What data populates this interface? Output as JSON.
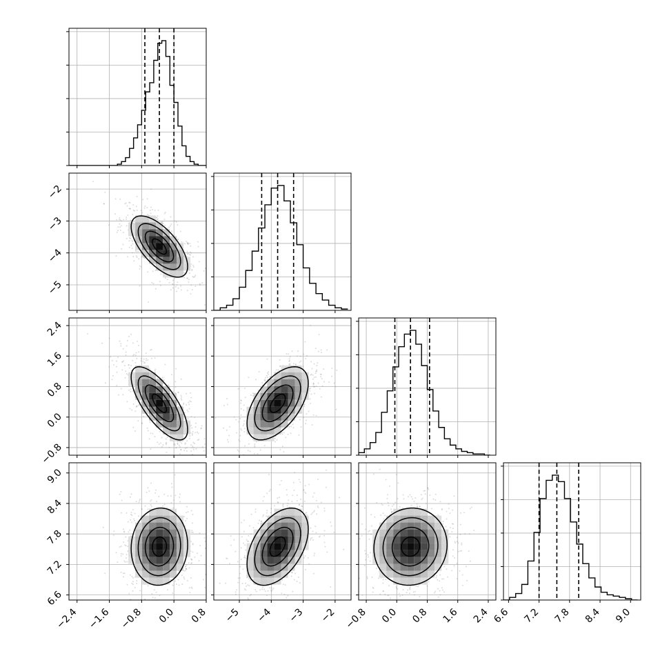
{
  "chart_data": {
    "type": "corner",
    "grid": true,
    "parameters": [
      {
        "label": "",
        "xlim": [
          -2.6,
          0.8
        ],
        "xticks": [
          -2.4,
          -1.6,
          -0.8,
          0.0,
          0.8
        ],
        "tick_labels": [
          "−2.4",
          "−1.6",
          "−0.8",
          "0.0",
          "0.8"
        ],
        "quantiles": [
          -0.72,
          -0.36,
          0.0
        ],
        "hist": {
          "edges": [
            -2.6,
            -2.5,
            -2.4,
            -2.3,
            -2.2,
            -2.1,
            -2.0,
            -1.9,
            -1.8,
            -1.7,
            -1.6,
            -1.5,
            -1.4,
            -1.3,
            -1.2,
            -1.1,
            -1.0,
            -0.9,
            -0.8,
            -0.7,
            -0.6,
            -0.5,
            -0.4,
            -0.3,
            -0.2,
            -0.1,
            0.0,
            0.1,
            0.2,
            0.3,
            0.4,
            0.5,
            0.6,
            0.7,
            0.8
          ],
          "counts": [
            0,
            0,
            0,
            0,
            0,
            0,
            0,
            0,
            0,
            0,
            0,
            0,
            0.01,
            0.03,
            0.06,
            0.13,
            0.21,
            0.31,
            0.42,
            0.56,
            0.63,
            0.8,
            0.93,
            0.95,
            0.83,
            0.61,
            0.48,
            0.3,
            0.15,
            0.07,
            0.03,
            0.01,
            0,
            0
          ]
        }
      },
      {
        "label": "",
        "xlim": [
          -5.8,
          -1.5
        ],
        "xticks": [
          -5,
          -4,
          -3,
          -2
        ],
        "tick_labels": [
          "−5",
          "−4",
          "−3",
          "−2"
        ],
        "quantiles": [
          -4.3,
          -3.8,
          -3.3
        ],
        "hist": {
          "edges": [
            -5.8,
            -5.6,
            -5.4,
            -5.2,
            -5.0,
            -4.8,
            -4.6,
            -4.4,
            -4.2,
            -4.0,
            -3.8,
            -3.6,
            -3.4,
            -3.2,
            -3.0,
            -2.8,
            -2.6,
            -2.4,
            -2.2,
            -2.0,
            -1.8,
            -1.6
          ],
          "counts": [
            0.0,
            0.02,
            0.04,
            0.09,
            0.18,
            0.31,
            0.46,
            0.64,
            0.82,
            0.95,
            0.97,
            0.85,
            0.68,
            0.51,
            0.33,
            0.21,
            0.13,
            0.08,
            0.04,
            0.02,
            0.01
          ]
        }
      },
      {
        "label": "",
        "xlim": [
          -1.0,
          2.6
        ],
        "xticks": [
          -0.8,
          0.0,
          0.8,
          1.6,
          2.4
        ],
        "tick_labels": [
          "−0.8",
          "0.0",
          "0.8",
          "1.6",
          "2.4"
        ],
        "quantiles": [
          -0.05,
          0.36,
          0.86
        ],
        "hist": {
          "edges": [
            -1.0,
            -0.85,
            -0.7,
            -0.55,
            -0.4,
            -0.25,
            -0.1,
            0.05,
            0.2,
            0.35,
            0.5,
            0.65,
            0.8,
            0.95,
            1.1,
            1.25,
            1.4,
            1.55,
            1.7,
            1.85,
            2.0,
            2.15,
            2.3,
            2.45
          ],
          "counts": [
            0.02,
            0.05,
            0.1,
            0.18,
            0.34,
            0.51,
            0.7,
            0.86,
            0.96,
            0.99,
            0.88,
            0.71,
            0.52,
            0.35,
            0.22,
            0.13,
            0.08,
            0.05,
            0.03,
            0.02,
            0.01,
            0.01,
            0.0
          ]
        }
      },
      {
        "label": "",
        "xlim": [
          6.5,
          9.2
        ],
        "xticks": [
          6.6,
          7.2,
          7.8,
          8.4,
          9.0
        ],
        "tick_labels": [
          "6.6",
          "7.2",
          "7.8",
          "8.4",
          "9.0"
        ],
        "quantiles": [
          7.2,
          7.55,
          7.98
        ],
        "hist": {
          "edges": [
            6.5,
            6.62,
            6.74,
            6.86,
            6.98,
            7.1,
            7.22,
            7.34,
            7.46,
            7.58,
            7.7,
            7.82,
            7.94,
            8.06,
            8.18,
            8.3,
            8.42,
            8.54,
            8.66,
            8.78,
            8.9,
            9.02,
            9.14
          ],
          "counts": [
            0.0,
            0.02,
            0.05,
            0.12,
            0.3,
            0.52,
            0.78,
            0.92,
            0.96,
            0.91,
            0.78,
            0.6,
            0.43,
            0.28,
            0.17,
            0.1,
            0.06,
            0.04,
            0.03,
            0.02,
            0.01,
            0.0
          ]
        }
      }
    ],
    "pair_peaks": [
      {
        "i": 1,
        "j": 0,
        "peak": [
          -0.36,
          -3.8
        ],
        "sd": [
          0.35,
          0.48
        ],
        "rho": -0.65
      },
      {
        "i": 2,
        "j": 0,
        "peak": [
          -0.36,
          0.36
        ],
        "sd": [
          0.35,
          0.48
        ],
        "rho": -0.72
      },
      {
        "i": 2,
        "j": 1,
        "peak": [
          -3.8,
          0.36
        ],
        "sd": [
          0.48,
          0.48
        ],
        "rho": 0.55
      },
      {
        "i": 3,
        "j": 0,
        "peak": [
          -0.36,
          7.55
        ],
        "sd": [
          0.35,
          0.38
        ],
        "rho": 0.05
      },
      {
        "i": 3,
        "j": 1,
        "peak": [
          -3.8,
          7.55
        ],
        "sd": [
          0.48,
          0.38
        ],
        "rho": 0.45
      },
      {
        "i": 3,
        "j": 2,
        "peak": [
          0.36,
          7.55
        ],
        "sd": [
          0.48,
          0.38
        ],
        "rho": 0.05
      }
    ],
    "contour_levels": [
      0.5,
      1.0,
      1.5,
      2.0
    ],
    "colors": {
      "line": "#000000",
      "grid": "#b0b0b0",
      "points": "#999999",
      "density_max": "#000000"
    }
  }
}
